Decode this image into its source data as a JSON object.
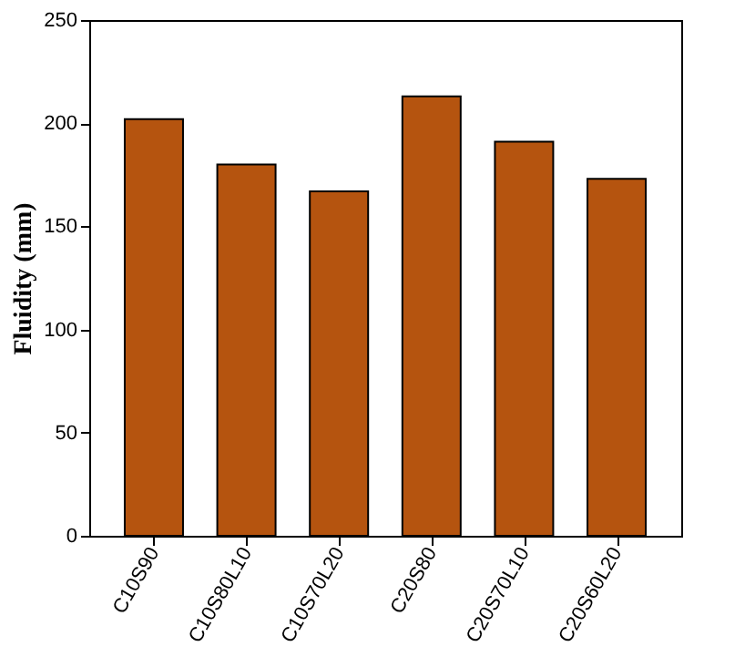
{
  "chart_data": {
    "type": "bar",
    "ylabel": "Fluidity (mm)",
    "categories": [
      "C10S90",
      "C10S80L10",
      "C10S70L20",
      "C20S80",
      "C20S70L10",
      "C20S60L20"
    ],
    "values": [
      202,
      180,
      167,
      213,
      191,
      173
    ],
    "color": "#b5540f",
    "ylim": [
      0,
      250
    ],
    "yticks": [
      0,
      50,
      100,
      150,
      200,
      250
    ],
    "grid": false
  }
}
